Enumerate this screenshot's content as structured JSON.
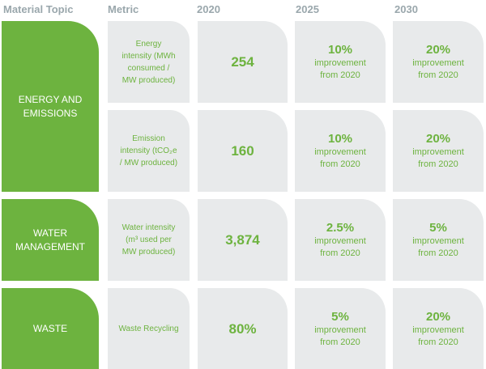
{
  "header": [
    "Material Topic",
    "Metric",
    "2020",
    "2025",
    "2030"
  ],
  "topics": [
    {
      "name": "ENERGY AND EMISSIONS",
      "metrics": [
        {
          "metric": [
            "Energy",
            "intensity (MWh",
            "consumed /",
            "MW produced)"
          ],
          "baseline": "254",
          "target_2025": {
            "value": "10%",
            "note": "improvement from 2020"
          },
          "target_2030": {
            "value": "20%",
            "note": "improvement from 2020"
          }
        },
        {
          "metric": [
            "Emission",
            "intensity (tCO₂e",
            "/ MW produced)"
          ],
          "baseline": "160",
          "target_2025": {
            "value": "10%",
            "note": "improvement from 2020"
          },
          "target_2030": {
            "value": "20%",
            "note": "improvement from 2020"
          }
        }
      ]
    },
    {
      "name": "WATER MANAGEMENT",
      "metrics": [
        {
          "metric": [
            "Water intensity",
            "(m³ used per",
            "MW produced)"
          ],
          "baseline": "3,874",
          "target_2025": {
            "value": "2.5%",
            "note": "improvement from 2020"
          },
          "target_2030": {
            "value": "5%",
            "note": "improvement from 2020"
          }
        }
      ]
    },
    {
      "name": "WASTE",
      "metrics": [
        {
          "metric": [
            "Waste Recycling"
          ],
          "baseline": "80%",
          "target_2025": {
            "value": "5%",
            "note": "improvement from 2020"
          },
          "target_2030": {
            "value": "20%",
            "note": "improvement from 2020"
          }
        }
      ]
    }
  ]
}
